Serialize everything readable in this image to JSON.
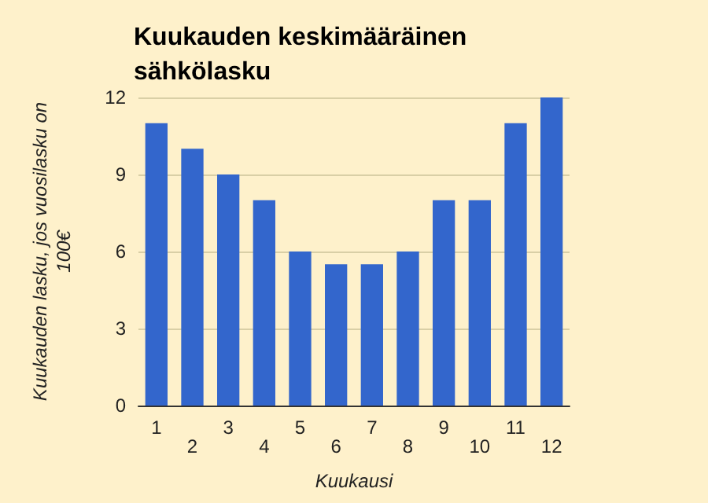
{
  "chart_data": {
    "type": "bar",
    "title": "Kuukauden keskimääräinen sähkölasku",
    "xlabel": "Kuukausi",
    "ylabel": "Kuukauden lasku, jos vuosilasku on 100€",
    "categories": [
      "1",
      "2",
      "3",
      "4",
      "5",
      "6",
      "7",
      "8",
      "9",
      "10",
      "11",
      "12"
    ],
    "values": [
      11,
      10,
      9,
      8,
      6,
      5.5,
      5.5,
      6,
      8,
      8,
      11,
      12
    ],
    "color": "#3366cc",
    "ylim": [
      0,
      12
    ],
    "yticks": [
      0,
      3,
      6,
      9,
      12
    ],
    "grid": "y"
  }
}
